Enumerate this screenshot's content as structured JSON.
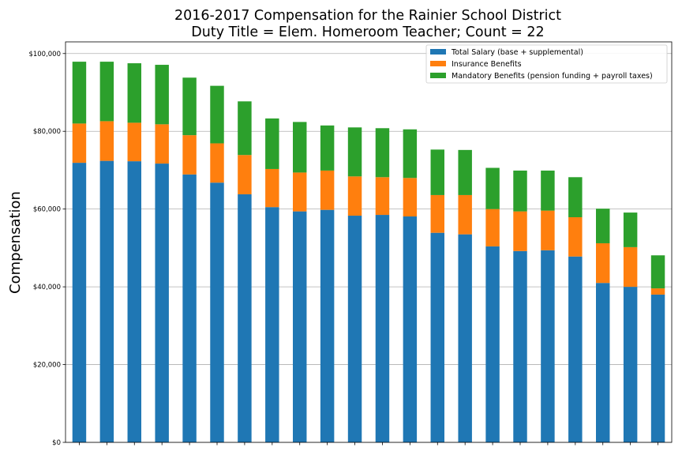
{
  "chart_data": {
    "type": "bar",
    "stacked": true,
    "title": "2016-2017 Compensation for the Rainier School District",
    "subtitle": "Duty Title = Elem. Homeroom Teacher; Count = 22",
    "xlabel": "",
    "ylabel": "Compensation",
    "ylim": [
      0,
      103000
    ],
    "yticks": [
      0,
      20000,
      40000,
      60000,
      80000,
      100000
    ],
    "ytick_labels": [
      "$0",
      "$20,000",
      "$40,000",
      "$60,000",
      "$80,000",
      "$100,000"
    ],
    "grid": "horizontal",
    "legend_position": "top-right",
    "series": [
      {
        "name": "Total Salary (base + supplemental)",
        "color": "#1f77b4",
        "values": [
          71900,
          72400,
          72300,
          71700,
          68900,
          66800,
          63800,
          60500,
          59400,
          59800,
          58300,
          58500,
          58100,
          53900,
          53500,
          50400,
          49200,
          49400,
          47800,
          41000,
          40000,
          38000
        ]
      },
      {
        "name": "Insurance Benefits",
        "color": "#ff7f0e",
        "values": [
          10100,
          10200,
          9900,
          10100,
          10100,
          10100,
          10100,
          9800,
          10000,
          10100,
          10100,
          9700,
          9900,
          9700,
          10100,
          9600,
          10200,
          10200,
          10100,
          10200,
          10200,
          1600
        ]
      },
      {
        "name": "Mandatory Benefits (pension funding + payroll taxes)",
        "color": "#2ca02c",
        "values": [
          15900,
          15300,
          15300,
          15300,
          14800,
          14800,
          13800,
          13000,
          13000,
          11600,
          12600,
          12600,
          12500,
          11700,
          11600,
          10600,
          10500,
          10300,
          10300,
          8900,
          8900,
          8500
        ]
      }
    ]
  }
}
